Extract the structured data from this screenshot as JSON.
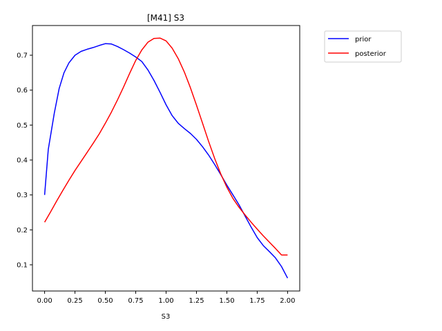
{
  "chart_data": {
    "type": "line",
    "title": "[M41] S3",
    "xlabel": "S3",
    "ylabel": "",
    "xlim": [
      -0.1,
      2.1
    ],
    "ylim": [
      0.025,
      0.785
    ],
    "xticks": [
      0.0,
      0.25,
      0.5,
      0.75,
      1.0,
      1.25,
      1.5,
      1.75,
      2.0
    ],
    "xtick_labels": [
      "0.00",
      "0.25",
      "0.50",
      "0.75",
      "1.00",
      "1.25",
      "1.50",
      "1.75",
      "2.00"
    ],
    "yticks": [
      0.1,
      0.2,
      0.3,
      0.4,
      0.5,
      0.6,
      0.7
    ],
    "ytick_labels": [
      "0.1",
      "0.2",
      "0.3",
      "0.4",
      "0.5",
      "0.6",
      "0.7"
    ],
    "grid": false,
    "legend": "outside-top-right",
    "series": [
      {
        "name": "prior",
        "color": "#0000ff",
        "x": [
          0.0,
          0.03,
          0.08,
          0.12,
          0.16,
          0.2,
          0.25,
          0.3,
          0.35,
          0.4,
          0.45,
          0.5,
          0.55,
          0.6,
          0.65,
          0.7,
          0.75,
          0.8,
          0.85,
          0.9,
          0.95,
          1.0,
          1.05,
          1.1,
          1.15,
          1.2,
          1.25,
          1.3,
          1.35,
          1.4,
          1.45,
          1.5,
          1.55,
          1.6,
          1.65,
          1.7,
          1.75,
          1.8,
          1.85,
          1.9,
          1.95,
          2.0
        ],
        "y": [
          0.3,
          0.43,
          0.535,
          0.605,
          0.65,
          0.678,
          0.7,
          0.711,
          0.717,
          0.722,
          0.728,
          0.733,
          0.732,
          0.725,
          0.716,
          0.706,
          0.695,
          0.682,
          0.658,
          0.628,
          0.594,
          0.558,
          0.527,
          0.505,
          0.49,
          0.476,
          0.459,
          0.438,
          0.414,
          0.387,
          0.358,
          0.328,
          0.3,
          0.272,
          0.24,
          0.208,
          0.178,
          0.155,
          0.138,
          0.12,
          0.095,
          0.062
        ]
      },
      {
        "name": "posterior",
        "color": "#ff0000",
        "x": [
          0.0,
          0.05,
          0.1,
          0.15,
          0.2,
          0.25,
          0.3,
          0.35,
          0.4,
          0.45,
          0.5,
          0.55,
          0.6,
          0.65,
          0.7,
          0.75,
          0.8,
          0.85,
          0.9,
          0.95,
          1.0,
          1.05,
          1.1,
          1.15,
          1.2,
          1.25,
          1.3,
          1.35,
          1.4,
          1.45,
          1.5,
          1.55,
          1.6,
          1.65,
          1.7,
          1.75,
          1.8,
          1.85,
          1.9,
          1.95,
          2.0
        ],
        "y": [
          0.222,
          0.252,
          0.283,
          0.313,
          0.342,
          0.37,
          0.396,
          0.422,
          0.448,
          0.475,
          0.505,
          0.537,
          0.572,
          0.609,
          0.648,
          0.685,
          0.715,
          0.737,
          0.748,
          0.749,
          0.741,
          0.72,
          0.69,
          0.652,
          0.607,
          0.557,
          0.505,
          0.453,
          0.404,
          0.36,
          0.322,
          0.29,
          0.265,
          0.243,
          0.222,
          0.202,
          0.183,
          0.165,
          0.147,
          0.128,
          0.128
        ]
      }
    ]
  }
}
